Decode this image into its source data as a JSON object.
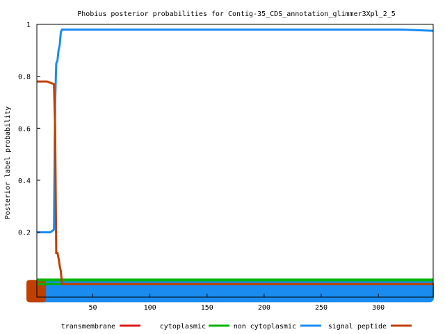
{
  "chart_data": {
    "type": "line",
    "title": "Phobius posterior probabilities for Contig-35_CDS_annotation_glimmer3Xpl_2_5",
    "xlabel": "",
    "ylabel": "Posterior label probability",
    "xlim": [
      1,
      348
    ],
    "ylim": [
      -0.05,
      1.0
    ],
    "x_ticks": [
      50,
      100,
      150,
      200,
      250,
      300
    ],
    "y_ticks": [
      0.2,
      0.4,
      0.6,
      0.8,
      1
    ],
    "y_tick_labels": [
      "0.2",
      "0.4",
      "0.6",
      "0.8",
      "1"
    ],
    "grid": false,
    "legend_position": "bottom",
    "series": [
      {
        "name": "transmembrane",
        "color": "#dd1a1a",
        "x": [
          1,
          10,
          20,
          348
        ],
        "y": [
          0.0,
          0.0,
          0.0,
          0.0
        ]
      },
      {
        "name": "cytoplasmic",
        "color": "#00b400",
        "x": [
          1,
          348
        ],
        "y": [
          0.0,
          0.0
        ]
      },
      {
        "name": "non cytoplasmic",
        "color": "#1a8cf0",
        "x": [
          1,
          13,
          16,
          17,
          18,
          19,
          20,
          21,
          22,
          23,
          24,
          300,
          320,
          348
        ],
        "y": [
          0.2,
          0.2,
          0.21,
          0.7,
          0.85,
          0.86,
          0.9,
          0.92,
          0.97,
          0.98,
          0.98,
          0.98,
          0.98,
          0.975
        ]
      },
      {
        "name": "signal peptide",
        "color": "#c04000",
        "x": [
          1,
          10,
          16,
          17,
          18,
          19,
          20,
          21,
          22,
          23,
          25,
          348
        ],
        "y": [
          0.78,
          0.78,
          0.77,
          0.6,
          0.12,
          0.12,
          0.1,
          0.07,
          0.05,
          0.0,
          0.0,
          0.0
        ]
      }
    ],
    "legend": [
      {
        "name": "transmembrane",
        "color": "#dd1a1a"
      },
      {
        "name": "cytoplasmic",
        "color": "#00b400"
      },
      {
        "name": "non cytoplasmic",
        "color": "#1a8cf0"
      },
      {
        "name": "signal peptide",
        "color": "#c04000"
      }
    ]
  }
}
